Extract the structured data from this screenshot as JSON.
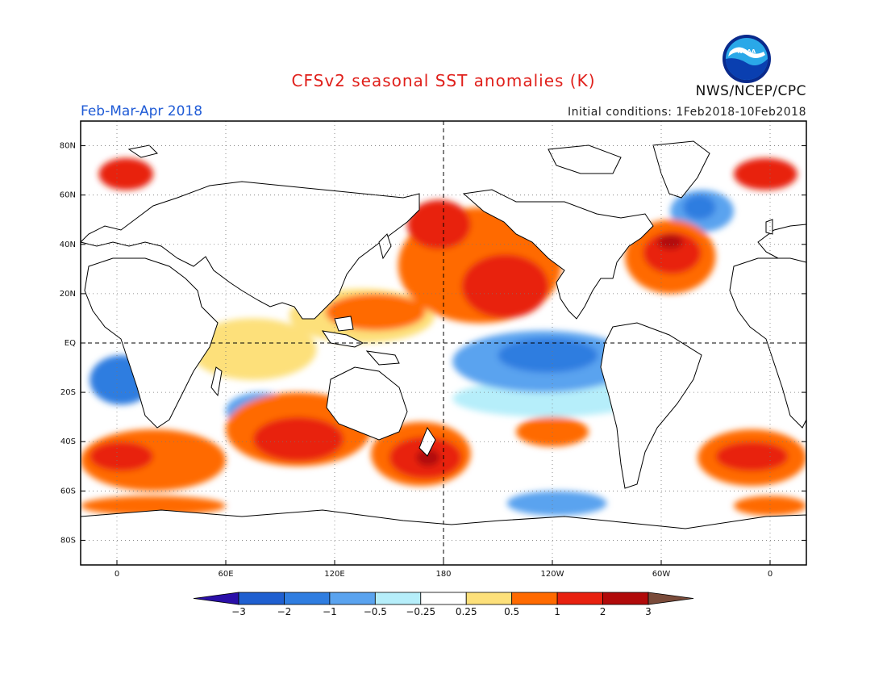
{
  "header": {
    "title": "CFSv2 seasonal SST anomalies (K)",
    "period": "Feb-Mar-Apr 2018",
    "agency": "NWS/NCEP/CPC",
    "initial_conditions": "Initial conditions: 1Feb2018-10Feb2018",
    "logo_text": "NOAA"
  },
  "map": {
    "projection": "equirectangular",
    "lon_range": [
      -20,
      380
    ],
    "lat_range": [
      -90,
      90
    ],
    "lat_ticks": [
      {
        "lat": 80,
        "label": "80N"
      },
      {
        "lat": 60,
        "label": "60N"
      },
      {
        "lat": 40,
        "label": "40N"
      },
      {
        "lat": 20,
        "label": "20N"
      },
      {
        "lat": 0,
        "label": "EQ"
      },
      {
        "lat": -20,
        "label": "20S"
      },
      {
        "lat": -40,
        "label": "40S"
      },
      {
        "lat": -60,
        "label": "60S"
      },
      {
        "lat": -80,
        "label": "80S"
      }
    ],
    "lon_ticks": [
      {
        "lon": 0,
        "label": "0"
      },
      {
        "lon": 60,
        "label": "60E"
      },
      {
        "lon": 120,
        "label": "120E"
      },
      {
        "lon": 180,
        "label": "180"
      },
      {
        "lon": 240,
        "label": "120W"
      },
      {
        "lon": 300,
        "label": "60W"
      },
      {
        "lon": 360,
        "label": "0"
      }
    ],
    "reference_lines": [
      "equator",
      "dateline"
    ],
    "anomaly_regions": [
      {
        "level": 1,
        "lon": [
          155,
          245
        ],
        "lat": [
          8,
          55
        ]
      },
      {
        "level": 2,
        "lon": [
          190,
          238
        ],
        "lat": [
          10,
          36
        ]
      },
      {
        "level": 2,
        "lon": [
          160,
          195
        ],
        "lat": [
          38,
          58
        ]
      },
      {
        "level": 0.5,
        "lon": [
          95,
          175
        ],
        "lat": [
          0,
          22
        ]
      },
      {
        "level": 1,
        "lon": [
          115,
          170
        ],
        "lat": [
          5,
          20
        ]
      },
      {
        "level": 1,
        "lon": [
          280,
          330
        ],
        "lat": [
          20,
          50
        ]
      },
      {
        "level": 2,
        "lon": [
          290,
          322
        ],
        "lat": [
          28,
          45
        ]
      },
      {
        "level": 3,
        "lon": [
          298,
          312
        ],
        "lat": [
          38,
          44
        ]
      },
      {
        "level": -0.5,
        "lon": [
          305,
          340
        ],
        "lat": [
          45,
          62
        ]
      },
      {
        "level": -1,
        "lon": [
          312,
          330
        ],
        "lat": [
          50,
          60
        ]
      },
      {
        "level": 2,
        "lon": [
          -10,
          20
        ],
        "lat": [
          62,
          75
        ]
      },
      {
        "level": 2,
        "lon": [
          340,
          375
        ],
        "lat": [
          62,
          75
        ]
      },
      {
        "level": -0.5,
        "lon": [
          185,
          285
        ],
        "lat": [
          -20,
          5
        ]
      },
      {
        "level": -1,
        "lon": [
          210,
          265
        ],
        "lat": [
          -12,
          2
        ]
      },
      {
        "level": -0.25,
        "lon": [
          185,
          290
        ],
        "lat": [
          -30,
          -15
        ]
      },
      {
        "level": 1,
        "lon": [
          60,
          140
        ],
        "lat": [
          -50,
          -20
        ]
      },
      {
        "level": 2,
        "lon": [
          75,
          125
        ],
        "lat": [
          -48,
          -30
        ]
      },
      {
        "level": 1,
        "lon": [
          140,
          195
        ],
        "lat": [
          -58,
          -32
        ]
      },
      {
        "level": 2,
        "lon": [
          150,
          190
        ],
        "lat": [
          -55,
          -38
        ]
      },
      {
        "level": 3,
        "lon": [
          165,
          178
        ],
        "lat": [
          -50,
          -43
        ]
      },
      {
        "level": 1,
        "lon": [
          -20,
          60
        ],
        "lat": [
          -60,
          -35
        ]
      },
      {
        "level": 2,
        "lon": [
          -15,
          20
        ],
        "lat": [
          -52,
          -40
        ]
      },
      {
        "level": 1,
        "lon": [
          320,
          380
        ],
        "lat": [
          -58,
          -35
        ]
      },
      {
        "level": 2,
        "lon": [
          330,
          370
        ],
        "lat": [
          -52,
          -40
        ]
      },
      {
        "level": 1,
        "lon": [
          220,
          260
        ],
        "lat": [
          -42,
          -30
        ]
      },
      {
        "level": 1,
        "lon": [
          -20,
          60
        ],
        "lat": [
          -70,
          -62
        ]
      },
      {
        "level": 1,
        "lon": [
          340,
          380
        ],
        "lat": [
          -70,
          -62
        ]
      },
      {
        "level": -1,
        "lon": [
          -15,
          20
        ],
        "lat": [
          -25,
          -5
        ]
      },
      {
        "level": -0.5,
        "lon": [
          60,
          100
        ],
        "lat": [
          -35,
          -20
        ]
      },
      {
        "level": -0.5,
        "lon": [
          215,
          270
        ],
        "lat": [
          -70,
          -60
        ]
      },
      {
        "level": 0.5,
        "lon": [
          40,
          110
        ],
        "lat": [
          -15,
          10
        ]
      }
    ]
  },
  "colorbar": {
    "levels": [
      "-3",
      "-2",
      "-1",
      "-0.5",
      "-0.25",
      "0.25",
      "0.5",
      "1",
      "2",
      "3"
    ],
    "colors": [
      "#2a0fa8",
      "#1f5fd0",
      "#2f7de0",
      "#5aa3ef",
      "#b6eefa",
      "#ffffff",
      "#fde07a",
      "#ff6a00",
      "#e8210f",
      "#b10a0a",
      "#7a4b3a"
    ]
  },
  "colors": {
    "ocean_neutral": "#ffffff",
    "land": "#ffffff",
    "coast": "#000000",
    "title": "#e0201b",
    "period": "#1f5bd6",
    "anomaly_scale": {
      "-3": "#2a0fa8",
      "-2": "#1f5fd0",
      "-1": "#2f7de0",
      "-0.5": "#5aa3ef",
      "-0.25": "#b6eefa",
      "0.5": "#fde07a",
      "1": "#ff6a00",
      "2": "#e8210f",
      "3": "#b10a0a"
    }
  }
}
